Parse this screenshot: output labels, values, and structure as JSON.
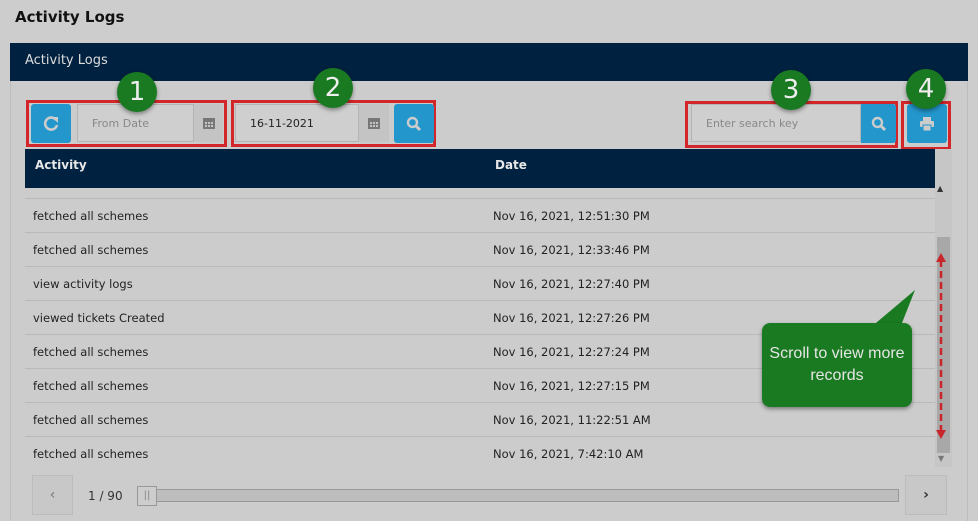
{
  "page": {
    "title": "Activity Logs"
  },
  "panel": {
    "title": "Activity Logs"
  },
  "toolbar": {
    "from_date_placeholder": "From Date",
    "to_date_value": "16-11-2021",
    "search_placeholder": "Enter search key"
  },
  "callouts": [
    "1",
    "2",
    "3",
    "4"
  ],
  "table": {
    "columns": [
      "Activity",
      "Date"
    ],
    "rows": [
      {
        "activity": "fetched all schemes",
        "date": "Nov 16, 2021, 12:51:30 PM"
      },
      {
        "activity": "fetched all schemes",
        "date": "Nov 16, 2021, 12:33:46 PM"
      },
      {
        "activity": "view activity logs",
        "date": "Nov 16, 2021, 12:27:40 PM"
      },
      {
        "activity": "viewed tickets Created",
        "date": "Nov 16, 2021, 12:27:26 PM"
      },
      {
        "activity": "fetched all schemes",
        "date": "Nov 16, 2021, 12:27:24 PM"
      },
      {
        "activity": "fetched all schemes",
        "date": "Nov 16, 2021, 12:27:15 PM"
      },
      {
        "activity": "fetched all schemes",
        "date": "Nov 16, 2021, 11:22:51 AM"
      },
      {
        "activity": "fetched all schemes",
        "date": "Nov 16, 2021, 7:42:10 AM"
      }
    ]
  },
  "tooltip": {
    "text": "Scroll to view more records"
  },
  "pagination": {
    "label": "1 / 90",
    "current": 1,
    "total": 90
  },
  "colors": {
    "navy": "#00213f",
    "button": "#2396cc",
    "callout": "#1a7a22",
    "highlight": "#d3262b"
  }
}
